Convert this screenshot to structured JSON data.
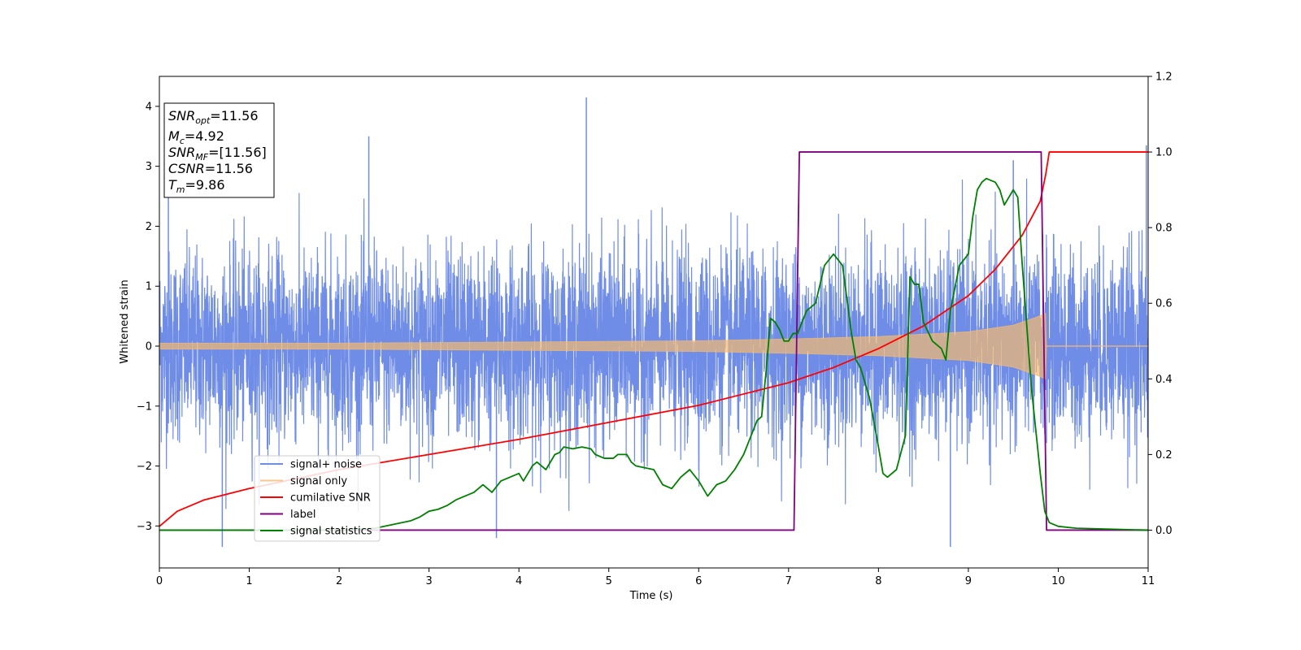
{
  "chart_data": {
    "type": "line",
    "title": "",
    "xlabel": "Time (s)",
    "ylabel": "Whitened strain",
    "xlim": [
      0,
      11
    ],
    "ylim_left": [
      -3.7,
      4.5
    ],
    "ylim_right": [
      -0.1,
      1.2
    ],
    "x_ticks": [
      "0",
      "1",
      "2",
      "3",
      "4",
      "5",
      "6",
      "7",
      "8",
      "9",
      "10",
      "11"
    ],
    "y_ticks_left": [
      "−3",
      "−2",
      "−1",
      "0",
      "1",
      "2",
      "3",
      "4"
    ],
    "y_ticks_right": [
      "0.0",
      "0.2",
      "0.4",
      "0.6",
      "0.8",
      "1.0",
      "1.2"
    ],
    "grid": false,
    "legend_position": "lower-left",
    "info_box": {
      "snr_opt": "=11.56",
      "mc": "=4.92",
      "snr_mf": "=[11.56]",
      "csnr": "=11.56",
      "tm": "=9.86"
    },
    "series": [
      {
        "name": "signal+ noise",
        "axis": "left",
        "color": "#6f8de6",
        "note_style": "noise",
        "spikes": [
          [
            0.1,
            2.5
          ],
          [
            2.33,
            3.5
          ],
          [
            4.75,
            4.15
          ],
          [
            0.7,
            -3.35
          ],
          [
            3.75,
            -3.2
          ],
          [
            8.8,
            -3.35
          ],
          [
            10.98,
            3.35
          ],
          [
            9.5,
            3.1
          ]
        ]
      },
      {
        "name": "signal only",
        "axis": "left",
        "color": "#f5b971",
        "note_style": "chirp",
        "envelope": [
          [
            0,
            0.05
          ],
          [
            2,
            0.05
          ],
          [
            4,
            0.07
          ],
          [
            6,
            0.09
          ],
          [
            7,
            0.12
          ],
          [
            8,
            0.16
          ],
          [
            9,
            0.24
          ],
          [
            9.5,
            0.35
          ],
          [
            9.75,
            0.48
          ],
          [
            9.86,
            0.55
          ],
          [
            9.87,
            0.0
          ],
          [
            11,
            0.0
          ]
        ]
      },
      {
        "name": "cumilative SNR",
        "axis": "right",
        "color": "#ff0000",
        "x": [
          0,
          0.2,
          0.5,
          1,
          1.5,
          2,
          3,
          4,
          5,
          6,
          7,
          7.5,
          8,
          8.5,
          9,
          9.3,
          9.6,
          9.8,
          9.86,
          9.9,
          11
        ],
        "y": [
          0.01,
          0.05,
          0.08,
          0.11,
          0.135,
          0.16,
          0.2,
          0.24,
          0.285,
          0.33,
          0.39,
          0.43,
          0.48,
          0.54,
          0.62,
          0.69,
          0.78,
          0.87,
          0.94,
          1.0,
          1.0
        ]
      },
      {
        "name": "label",
        "axis": "right",
        "color": "#800080",
        "x": [
          0,
          7.06,
          7.12,
          9.81,
          9.87,
          11
        ],
        "y": [
          0,
          0,
          1,
          1,
          0,
          0
        ]
      },
      {
        "name": "signal statistics",
        "axis": "right",
        "color": "#008000",
        "x": [
          0,
          0.5,
          1,
          1.5,
          2,
          2.4,
          2.6,
          2.8,
          2.9,
          3.0,
          3.1,
          3.2,
          3.3,
          3.4,
          3.5,
          3.6,
          3.7,
          3.8,
          3.9,
          4.0,
          4.05,
          4.1,
          4.15,
          4.2,
          4.25,
          4.3,
          4.4,
          4.45,
          4.5,
          4.6,
          4.7,
          4.8,
          4.85,
          4.95,
          5.05,
          5.1,
          5.2,
          5.25,
          5.3,
          5.5,
          5.6,
          5.7,
          5.8,
          5.9,
          6.0,
          6.1,
          6.2,
          6.3,
          6.4,
          6.5,
          6.6,
          6.65,
          6.7,
          6.75,
          6.8,
          6.85,
          6.9,
          6.95,
          7.0,
          7.05,
          7.1,
          7.15,
          7.2,
          7.3,
          7.4,
          7.5,
          7.6,
          7.7,
          7.75,
          7.8,
          7.9,
          8.0,
          8.05,
          8.1,
          8.2,
          8.3,
          8.35,
          8.4,
          8.45,
          8.5,
          8.6,
          8.7,
          8.75,
          8.8,
          8.9,
          9.0,
          9.05,
          9.1,
          9.15,
          9.2,
          9.3,
          9.35,
          9.4,
          9.45,
          9.5,
          9.55,
          9.6,
          9.7,
          9.8,
          9.85,
          9.9,
          10.0,
          10.2,
          11
        ],
        "y": [
          0.0,
          0.0,
          0.0,
          0.0,
          0.0,
          0.005,
          0.015,
          0.025,
          0.035,
          0.05,
          0.055,
          0.065,
          0.08,
          0.09,
          0.1,
          0.12,
          0.1,
          0.13,
          0.14,
          0.15,
          0.13,
          0.15,
          0.17,
          0.18,
          0.17,
          0.16,
          0.2,
          0.205,
          0.22,
          0.215,
          0.22,
          0.215,
          0.2,
          0.19,
          0.19,
          0.2,
          0.2,
          0.18,
          0.17,
          0.16,
          0.12,
          0.11,
          0.14,
          0.16,
          0.13,
          0.09,
          0.12,
          0.13,
          0.16,
          0.2,
          0.26,
          0.29,
          0.3,
          0.42,
          0.56,
          0.55,
          0.53,
          0.5,
          0.5,
          0.52,
          0.52,
          0.55,
          0.58,
          0.6,
          0.7,
          0.73,
          0.7,
          0.52,
          0.45,
          0.43,
          0.35,
          0.22,
          0.15,
          0.14,
          0.16,
          0.25,
          0.67,
          0.65,
          0.65,
          0.55,
          0.5,
          0.48,
          0.45,
          0.58,
          0.7,
          0.73,
          0.83,
          0.9,
          0.92,
          0.93,
          0.92,
          0.9,
          0.86,
          0.88,
          0.9,
          0.88,
          0.7,
          0.38,
          0.15,
          0.05,
          0.02,
          0.01,
          0.005,
          0.0
        ]
      }
    ]
  }
}
